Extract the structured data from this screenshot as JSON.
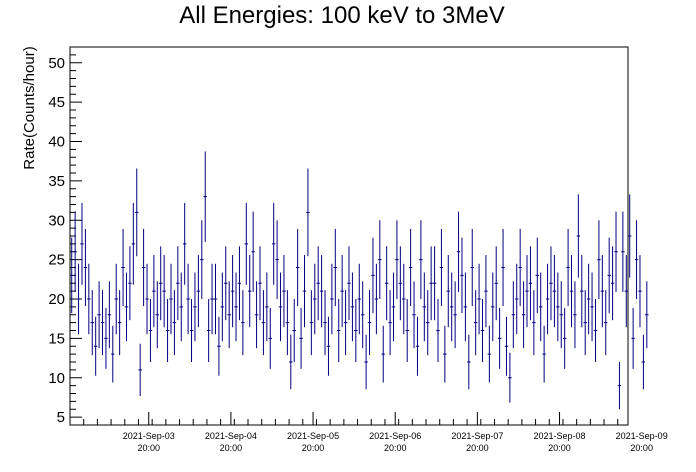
{
  "chart_data": {
    "type": "scatter",
    "style": "error-bars",
    "title": "All Energies:  100 keV to 3MeV",
    "xlabel": "",
    "ylabel": "Rate(Counts/hour)",
    "ylim": [
      4,
      52
    ],
    "yticks": [
      5,
      10,
      15,
      20,
      25,
      30,
      35,
      40,
      45,
      50
    ],
    "x_unit": "hours",
    "x_start": "2021-Sep-02 21:00",
    "x_range": [
      0,
      163
    ],
    "xticks": [
      {
        "x": 23,
        "date": "2021-Sep-03",
        "time": "20:00"
      },
      {
        "x": 47,
        "date": "2021-Sep-04",
        "time": "20:00"
      },
      {
        "x": 71,
        "date": "2021-Sep-05",
        "time": "20:00"
      },
      {
        "x": 95,
        "date": "2021-Sep-06",
        "time": "20:00"
      },
      {
        "x": 119,
        "date": "2021-Sep-07",
        "time": "20:00"
      },
      {
        "x": 143,
        "date": "2021-Sep-08",
        "time": "20:00"
      },
      {
        "x": 167,
        "date": "2021-Sep-09",
        "time": "20:00"
      }
    ],
    "grid": false,
    "series": [
      {
        "color": "#000080",
        "bin_width": 1,
        "values": [
          23,
          26,
          20,
          27,
          24,
          20,
          17,
          14,
          18,
          17,
          15,
          18,
          13,
          20,
          17,
          24,
          19,
          22,
          27,
          31,
          11,
          24,
          20,
          16,
          21,
          18,
          22,
          21,
          16,
          20,
          17,
          22,
          19,
          27,
          20,
          16,
          19,
          21,
          25,
          33,
          16,
          20,
          20,
          14,
          19,
          22,
          18,
          21,
          19,
          22,
          17,
          27,
          21,
          26,
          18,
          22,
          17,
          19,
          15,
          27,
          25,
          19,
          21,
          17,
          12,
          16,
          24,
          15,
          21,
          31,
          17,
          20,
          22,
          21,
          17,
          14,
          20,
          24,
          16,
          21,
          17,
          22,
          19,
          16,
          20,
          18,
          12,
          17,
          23,
          20,
          25,
          13,
          22,
          17,
          19,
          25,
          22,
          20,
          16,
          24,
          18,
          14,
          25,
          19,
          17,
          22,
          22,
          16,
          24,
          13,
          21,
          19,
          18,
          26,
          23,
          19,
          12,
          24,
          17,
          20,
          16,
          21,
          13,
          19,
          22,
          15,
          24,
          14,
          10,
          18,
          20,
          24,
          18,
          21,
          22,
          17,
          23,
          19,
          13,
          20,
          22,
          21,
          19,
          18,
          15,
          24,
          21,
          18,
          28,
          21,
          17,
          20,
          19,
          16,
          25,
          21,
          17,
          23,
          22,
          26,
          9,
          26,
          21,
          28,
          15,
          25,
          21,
          12,
          18
        ]
      }
    ]
  }
}
